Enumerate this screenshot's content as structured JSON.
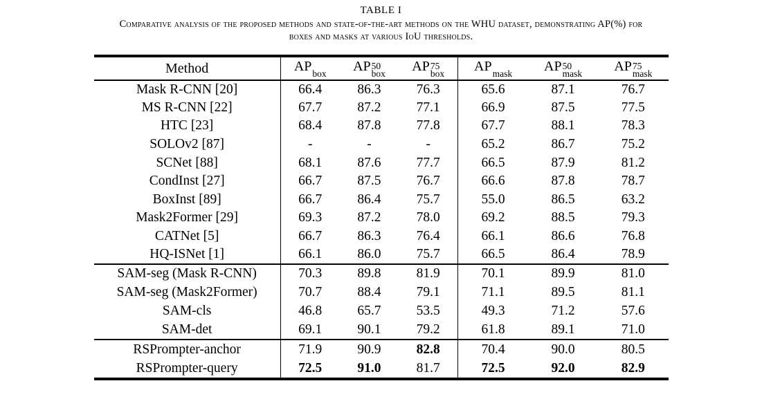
{
  "colors": {
    "text": "#000000",
    "background": "#ffffff"
  },
  "title": "TABLE I",
  "caption": {
    "line1": "Comparative analysis of the proposed methods and state-of-the-art methods on the WHU dataset, demonstrating AP(%) for",
    "line2": "boxes and masks at various IoU thresholds."
  },
  "table": {
    "columns": [
      {
        "label": "Method"
      },
      {
        "base": "AP",
        "sup": "",
        "sub": "box"
      },
      {
        "base": "AP",
        "sup": "50",
        "sub": "box"
      },
      {
        "base": "AP",
        "sup": "75",
        "sub": "box"
      },
      {
        "base": "AP",
        "sup": "",
        "sub": "mask"
      },
      {
        "base": "AP",
        "sup": "50",
        "sub": "mask"
      },
      {
        "base": "AP",
        "sup": "75",
        "sub": "mask"
      }
    ],
    "groups": [
      {
        "rows": [
          {
            "method": "Mask R-CNN [20]",
            "values": [
              "66.4",
              "86.3",
              "76.3",
              "65.6",
              "87.1",
              "76.7"
            ],
            "bold": []
          },
          {
            "method": "MS R-CNN [22]",
            "values": [
              "67.7",
              "87.2",
              "77.1",
              "66.9",
              "87.5",
              "77.5"
            ],
            "bold": []
          },
          {
            "method": "HTC [23]",
            "values": [
              "68.4",
              "87.8",
              "77.8",
              "67.7",
              "88.1",
              "78.3"
            ],
            "bold": []
          },
          {
            "method": "SOLOv2 [87]",
            "values": [
              "-",
              "-",
              "-",
              "65.2",
              "86.7",
              "75.2"
            ],
            "bold": []
          },
          {
            "method": "SCNet [88]",
            "values": [
              "68.1",
              "87.6",
              "77.7",
              "66.5",
              "87.9",
              "81.2"
            ],
            "bold": []
          },
          {
            "method": "CondInst [27]",
            "values": [
              "66.7",
              "87.5",
              "76.7",
              "66.6",
              "87.8",
              "78.7"
            ],
            "bold": []
          },
          {
            "method": "BoxInst [89]",
            "values": [
              "66.7",
              "86.4",
              "75.7",
              "55.0",
              "86.5",
              "63.2"
            ],
            "bold": []
          },
          {
            "method": "Mask2Former [29]",
            "values": [
              "69.3",
              "87.2",
              "78.0",
              "69.2",
              "88.5",
              "79.3"
            ],
            "bold": []
          },
          {
            "method": "CATNet [5]",
            "values": [
              "66.7",
              "86.3",
              "76.4",
              "66.1",
              "86.6",
              "76.8"
            ],
            "bold": []
          },
          {
            "method": "HQ-ISNet [1]",
            "values": [
              "66.1",
              "86.0",
              "75.7",
              "66.5",
              "86.4",
              "78.9"
            ],
            "bold": []
          }
        ]
      },
      {
        "rows": [
          {
            "method": "SAM-seg (Mask R-CNN)",
            "values": [
              "70.3",
              "89.8",
              "81.9",
              "70.1",
              "89.9",
              "81.0"
            ],
            "bold": []
          },
          {
            "method": "SAM-seg (Mask2Former)",
            "values": [
              "70.7",
              "88.4",
              "79.1",
              "71.1",
              "89.5",
              "81.1"
            ],
            "bold": []
          },
          {
            "method": "SAM-cls",
            "values": [
              "46.8",
              "65.7",
              "53.5",
              "49.3",
              "71.2",
              "57.6"
            ],
            "bold": []
          },
          {
            "method": "SAM-det",
            "values": [
              "69.1",
              "90.1",
              "79.2",
              "61.8",
              "89.1",
              "71.0"
            ],
            "bold": []
          }
        ]
      },
      {
        "rows": [
          {
            "method": "RSPrompter-anchor",
            "values": [
              "71.9",
              "90.9",
              "82.8",
              "70.4",
              "90.0",
              "80.5"
            ],
            "bold": [
              2
            ]
          },
          {
            "method": "RSPrompter-query",
            "values": [
              "72.5",
              "91.0",
              "81.7",
              "72.5",
              "92.0",
              "82.9"
            ],
            "bold": [
              0,
              1,
              3,
              4,
              5
            ]
          }
        ]
      }
    ]
  }
}
